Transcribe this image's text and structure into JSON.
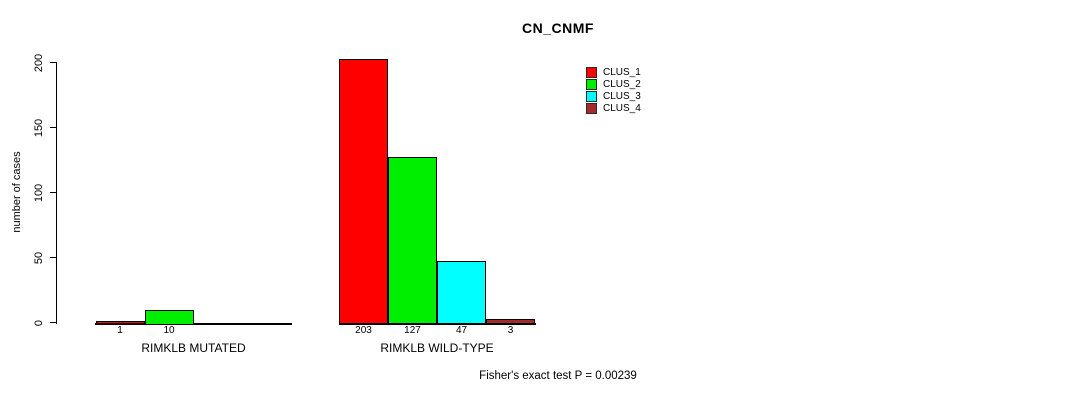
{
  "chart_data": {
    "type": "bar",
    "title": "CN_CNMF",
    "ylabel": "number of cases",
    "xlabel": "",
    "ylim": [
      0,
      200
    ],
    "yticks": [
      0,
      50,
      100,
      150,
      200
    ],
    "grid": false,
    "legend_position": "top-right",
    "legend": [
      {
        "name": "CLUS_1",
        "color": "#FF0000"
      },
      {
        "name": "CLUS_2",
        "color": "#00EE00"
      },
      {
        "name": "CLUS_3",
        "color": "#00FFFF"
      },
      {
        "name": "CLUS_4",
        "color": "#A52A2A"
      }
    ],
    "groups": [
      {
        "label": "RIMKLB MUTATED",
        "bars": [
          {
            "cluster": "CLUS_1",
            "value": 1,
            "value_label": "1",
            "color": "#FF0000"
          },
          {
            "cluster": "CLUS_2",
            "value": 10,
            "value_label": "10",
            "color": "#00EE00"
          },
          {
            "cluster": "CLUS_3",
            "value": 0,
            "value_label": "",
            "color": "#00FFFF"
          },
          {
            "cluster": "CLUS_4",
            "value": 0,
            "value_label": "",
            "color": "#A52A2A"
          }
        ]
      },
      {
        "label": "RIMKLB WILD-TYPE",
        "bars": [
          {
            "cluster": "CLUS_1",
            "value": 203,
            "value_label": "203",
            "color": "#FF0000"
          },
          {
            "cluster": "CLUS_2",
            "value": 127,
            "value_label": "127",
            "color": "#00EE00"
          },
          {
            "cluster": "CLUS_3",
            "value": 47,
            "value_label": "47",
            "color": "#00FFFF"
          },
          {
            "cluster": "CLUS_4",
            "value": 3,
            "value_label": "3",
            "color": "#A52A2A"
          }
        ]
      }
    ],
    "annotation": "Fisher's exact test P = 0.00239"
  }
}
